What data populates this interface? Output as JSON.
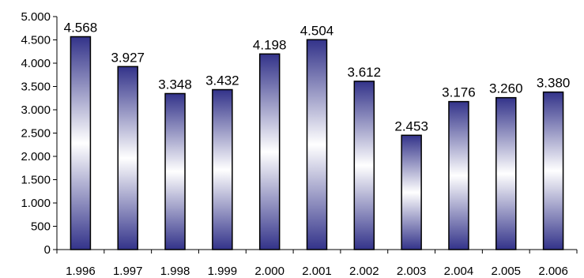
{
  "chart_data": {
    "type": "bar",
    "title": "",
    "xlabel": "",
    "ylabel": "",
    "categories": [
      "1.996",
      "1.997",
      "1.998",
      "1.999",
      "2.000",
      "2.001",
      "2.002",
      "2.003",
      "2.004",
      "2.005",
      "2.006"
    ],
    "values": [
      4568,
      3927,
      3348,
      3432,
      4198,
      4504,
      3612,
      2453,
      3176,
      3260,
      3380
    ],
    "value_labels": [
      "4.568",
      "3.927",
      "3.348",
      "3.432",
      "4.198",
      "4.504",
      "3.612",
      "2.453",
      "3.176",
      "3.260",
      "3.380"
    ],
    "ylim": [
      0,
      5000
    ],
    "yticks": [
      0,
      500,
      1000,
      1500,
      2000,
      2500,
      3000,
      3500,
      4000,
      4500,
      5000
    ],
    "ytick_labels": [
      "0",
      "500",
      "1.000",
      "1.500",
      "2.000",
      "2.500",
      "3.000",
      "3.500",
      "4.000",
      "4.500",
      "5.000"
    ],
    "grid": false,
    "legend": "none",
    "bar_color": "#33338a",
    "bar_highlight": "#ffffff"
  }
}
